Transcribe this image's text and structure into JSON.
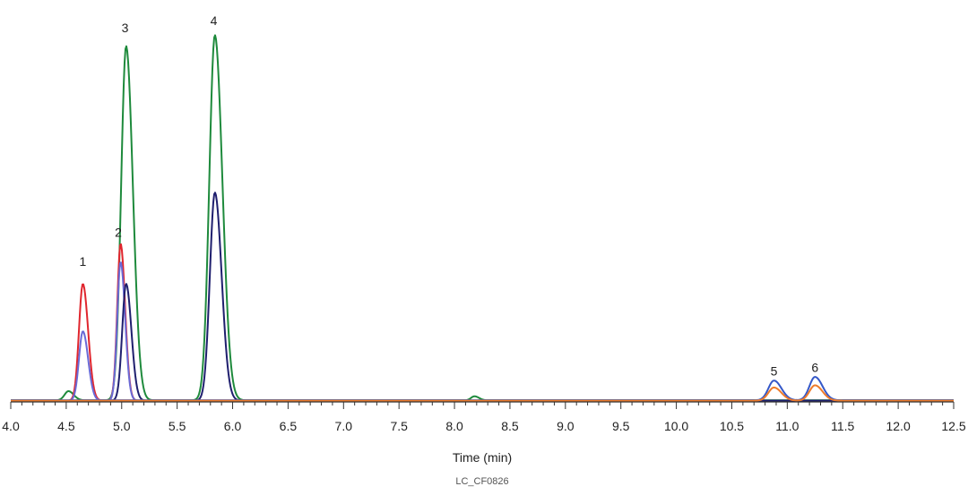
{
  "chart_data": {
    "type": "line",
    "title": "",
    "xlabel": "Time (min)",
    "ylabel": "",
    "xlim": [
      4.0,
      12.5
    ],
    "ylim": [
      0,
      100
    ],
    "x_ticks": [
      "4.0",
      "4.5",
      "5.0",
      "5.5",
      "6.0",
      "6.5",
      "7.0",
      "7.5",
      "8.0",
      "8.5",
      "9.0",
      "9.5",
      "10.0",
      "10.5",
      "11.0",
      "11.5",
      "12.0",
      "12.5"
    ],
    "grid": false,
    "legend": "none",
    "caption": "LC_CF0826",
    "peak_labels": [
      {
        "label": "1",
        "x": 4.65,
        "y": 37
      },
      {
        "label": "2",
        "x": 4.97,
        "y": 45
      },
      {
        "label": "3",
        "x": 5.03,
        "y": 101
      },
      {
        "label": "4",
        "x": 5.83,
        "y": 103
      },
      {
        "label": "5",
        "x": 10.88,
        "y": 7
      },
      {
        "label": "6",
        "x": 11.25,
        "y": 8
      }
    ],
    "series": [
      {
        "color": "#1e8a3c",
        "baseline": 0.2,
        "peaks": [
          {
            "x": 4.52,
            "y": 2.5,
            "w": 0.035
          },
          {
            "x": 5.04,
            "y": 97,
            "w": 0.045
          },
          {
            "x": 5.84,
            "y": 100,
            "w": 0.05
          },
          {
            "x": 8.18,
            "y": 1.1,
            "w": 0.03
          }
        ]
      },
      {
        "color": "#e0262e",
        "baseline": 0.1,
        "peaks": [
          {
            "x": 4.65,
            "y": 32,
            "w": 0.035
          },
          {
            "x": 4.99,
            "y": 43,
            "w": 0.03
          }
        ]
      },
      {
        "color": "#6a6ad6",
        "baseline": 0.1,
        "peaks": [
          {
            "x": 4.65,
            "y": 19,
            "w": 0.035
          },
          {
            "x": 4.99,
            "y": 38,
            "w": 0.03
          }
        ]
      },
      {
        "color": "#1f1f6e",
        "baseline": 0.1,
        "peaks": [
          {
            "x": 5.04,
            "y": 32,
            "w": 0.035
          },
          {
            "x": 5.84,
            "y": 57,
            "w": 0.045
          }
        ]
      },
      {
        "color": "#3558c8",
        "baseline": 0.2,
        "peaks": [
          {
            "x": 10.88,
            "y": 5.4,
            "w": 0.05
          },
          {
            "x": 11.25,
            "y": 6.4,
            "w": 0.05
          }
        ]
      },
      {
        "color": "#ee7b2a",
        "baseline": 0.1,
        "peaks": [
          {
            "x": 10.88,
            "y": 3.6,
            "w": 0.05
          },
          {
            "x": 11.25,
            "y": 4.2,
            "w": 0.05
          }
        ]
      }
    ]
  }
}
